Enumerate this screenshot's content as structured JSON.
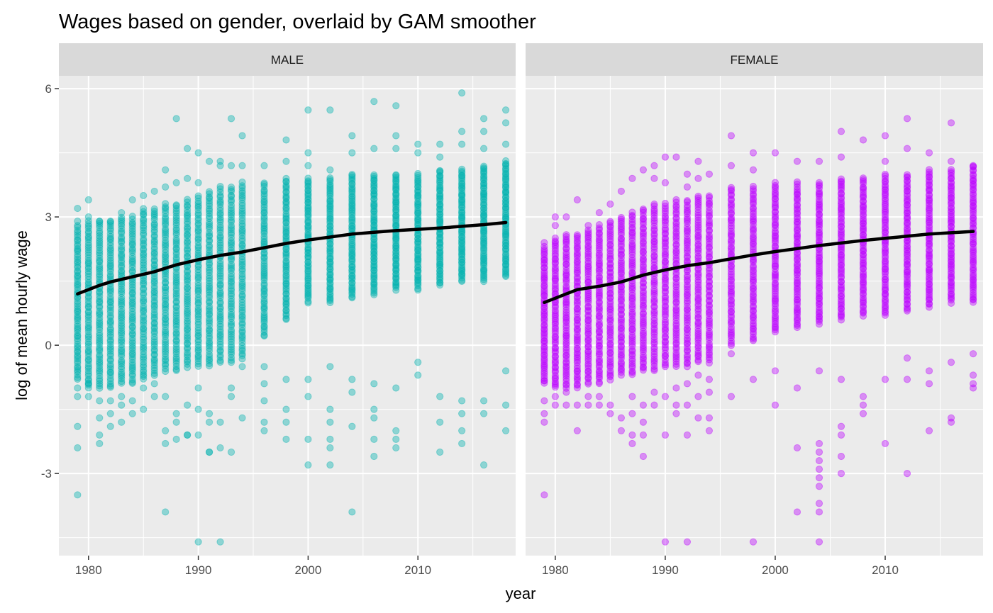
{
  "chart_data": {
    "type": "scatter",
    "title": "Wages based on gender, overlaid by GAM smoother",
    "xlabel": "year",
    "ylabel": "log of mean hourly wage",
    "xlim": [
      1977.3,
      2018.9
    ],
    "ylim": [
      -4.92,
      6.3
    ],
    "x_ticks": [
      1980,
      1990,
      2000,
      2010
    ],
    "x_tick_labels": [
      "1980",
      "1990",
      "2000",
      "2010"
    ],
    "y_ticks": [
      -3,
      0,
      3,
      6
    ],
    "y_tick_labels": [
      "-3",
      "0",
      "3",
      "6"
    ],
    "grid": true,
    "legend": "none",
    "facets": [
      {
        "label": "MALE",
        "color": "#00B2AE",
        "point_opacity": 0.4,
        "years": [
          1979,
          1980,
          1981,
          1982,
          1983,
          1984,
          1985,
          1986,
          1987,
          1988,
          1989,
          1990,
          1991,
          1992,
          1993,
          1994,
          1996,
          1998,
          2000,
          2002,
          2004,
          2006,
          2008,
          2010,
          2012,
          2014,
          2016,
          2018
        ],
        "core_range": [
          [
            -0.8,
            2.8
          ],
          [
            -1.0,
            2.9
          ],
          [
            -1.0,
            2.9
          ],
          [
            -1.0,
            2.9
          ],
          [
            -0.9,
            3.0
          ],
          [
            -0.9,
            3.0
          ],
          [
            -0.8,
            3.2
          ],
          [
            -0.7,
            3.2
          ],
          [
            -0.6,
            3.3
          ],
          [
            -0.6,
            3.3
          ],
          [
            -0.5,
            3.4
          ],
          [
            -0.5,
            3.5
          ],
          [
            -0.5,
            3.6
          ],
          [
            -0.4,
            3.7
          ],
          [
            -0.4,
            3.7
          ],
          [
            -0.3,
            3.8
          ],
          [
            0.2,
            3.8
          ],
          [
            0.6,
            3.9
          ],
          [
            1.0,
            3.9
          ],
          [
            1.0,
            3.9
          ],
          [
            1.1,
            4.0
          ],
          [
            1.2,
            4.0
          ],
          [
            1.3,
            4.0
          ],
          [
            1.3,
            4.0
          ],
          [
            1.4,
            4.1
          ],
          [
            1.5,
            4.1
          ],
          [
            1.5,
            4.2
          ],
          [
            1.6,
            4.3
          ]
        ],
        "outliers": [
          [
            [
              3.2,
              2.9,
              -1.9,
              -2.4,
              -3.5,
              -1.2,
              -1.0
            ]
          ],
          [
            [
              3.4,
              3.0,
              -1.2,
              -0.9
            ]
          ],
          [
            [
              2.9,
              -2.1,
              -2.3,
              -1.7,
              -1.3
            ]
          ],
          [
            [
              2.9,
              -1.6,
              -1.9,
              -1.3
            ]
          ],
          [
            [
              3.1,
              -1.8,
              -1.4,
              -1.2
            ]
          ],
          [
            [
              3.4,
              -1.6,
              -1.3
            ]
          ],
          [
            [
              3.5,
              -1.5,
              -1.0
            ]
          ],
          [
            [
              3.6,
              -1.2,
              -0.9
            ]
          ],
          [
            [
              4.1,
              3.7,
              -1.2,
              -2.0,
              -2.3,
              -3.9
            ]
          ],
          [
            [
              5.3,
              3.8,
              -1.8,
              -2.2,
              -1.6
            ]
          ],
          [
            [
              4.6,
              3.9,
              -2.1,
              -1.4,
              -2.1
            ]
          ],
          [
            [
              4.5,
              3.8,
              -1.0,
              -2.1,
              -4.6,
              -1.5
            ]
          ],
          [
            [
              4.3,
              -1.6,
              -1.8,
              -2.5,
              -2.5
            ]
          ],
          [
            [
              4.3,
              4.2,
              -2.4,
              -1.8,
              -4.6
            ]
          ],
          [
            [
              5.3,
              4.2,
              -1.0,
              -2.5,
              -1.2
            ]
          ],
          [
            [
              4.9,
              4.2,
              -1.7,
              -0.5
            ]
          ],
          [
            [
              4.2,
              -0.5,
              -0.9,
              -1.3,
              -1.8,
              -2.0
            ]
          ],
          [
            [
              4.8,
              4.3,
              -0.8,
              -1.5,
              -1.8,
              -2.2
            ]
          ],
          [
            [
              5.5,
              4.5,
              4.2,
              -0.8,
              -1.2,
              -2.2,
              -2.8
            ]
          ],
          [
            [
              5.5,
              4.1,
              -0.5,
              -1.5,
              -1.8,
              -2.2,
              -2.4,
              -2.8
            ]
          ],
          [
            [
              4.9,
              4.5,
              -1.1,
              -1.9,
              -3.9,
              -0.8
            ]
          ],
          [
            [
              5.7,
              4.6,
              -0.9,
              -1.5,
              -1.7,
              -2.2,
              -2.6
            ]
          ],
          [
            [
              5.6,
              4.9,
              4.6,
              -1.0,
              -2.0,
              -2.2,
              -2.4
            ]
          ],
          [
            [
              4.7,
              4.5,
              -0.7,
              -0.4
            ]
          ],
          [
            [
              4.7,
              4.4,
              -1.2,
              -1.8,
              -2.5
            ]
          ],
          [
            [
              5.9,
              5.0,
              4.7,
              -1.3,
              -1.6,
              -2.0,
              -2.3
            ]
          ],
          [
            [
              5.3,
              5.0,
              4.6,
              -1.3,
              -1.6,
              -2.8
            ]
          ],
          [
            [
              5.5,
              5.2,
              4.7,
              -0.6,
              -1.4,
              -2.0
            ]
          ]
        ],
        "smooth_x": [
          1979,
          1980,
          1981,
          1982,
          1984,
          1986,
          1988,
          1990,
          1992,
          1994,
          1996,
          1998,
          2000,
          2002,
          2004,
          2006,
          2008,
          2010,
          2012,
          2014,
          2016,
          2018
        ],
        "smooth_y": [
          1.2,
          1.3,
          1.4,
          1.48,
          1.6,
          1.72,
          1.88,
          2.0,
          2.1,
          2.18,
          2.28,
          2.38,
          2.46,
          2.53,
          2.6,
          2.64,
          2.68,
          2.71,
          2.74,
          2.78,
          2.82,
          2.87
        ]
      },
      {
        "label": "FEMALE",
        "color": "#BB00FF",
        "point_opacity": 0.4,
        "years": [
          1979,
          1980,
          1981,
          1982,
          1983,
          1984,
          1985,
          1986,
          1987,
          1988,
          1989,
          1990,
          1991,
          1992,
          1993,
          1994,
          1996,
          1998,
          2000,
          2002,
          2004,
          2006,
          2008,
          2010,
          2012,
          2014,
          2016,
          2018
        ],
        "core_range": [
          [
            -0.9,
            2.3
          ],
          [
            -1.0,
            2.5
          ],
          [
            -1.0,
            2.6
          ],
          [
            -1.0,
            2.6
          ],
          [
            -0.9,
            2.7
          ],
          [
            -0.9,
            2.8
          ],
          [
            -0.8,
            2.9
          ],
          [
            -0.7,
            3.0
          ],
          [
            -0.7,
            3.1
          ],
          [
            -0.6,
            3.2
          ],
          [
            -0.6,
            3.3
          ],
          [
            -0.5,
            3.3
          ],
          [
            -0.5,
            3.4
          ],
          [
            -0.5,
            3.4
          ],
          [
            -0.4,
            3.5
          ],
          [
            -0.4,
            3.5
          ],
          [
            0.0,
            3.7
          ],
          [
            0.1,
            3.7
          ],
          [
            0.3,
            3.8
          ],
          [
            0.4,
            3.8
          ],
          [
            0.5,
            3.8
          ],
          [
            0.6,
            3.9
          ],
          [
            0.7,
            3.9
          ],
          [
            0.7,
            4.0
          ],
          [
            0.8,
            4.0
          ],
          [
            0.9,
            4.1
          ],
          [
            1.0,
            4.1
          ],
          [
            1.0,
            4.2
          ]
        ],
        "outliers": [
          [
            [
              2.4,
              -1.3,
              -1.6,
              -1.8,
              -3.5
            ]
          ],
          [
            [
              2.8,
              3.0,
              -1.4,
              -1.2
            ]
          ],
          [
            [
              3.0,
              -1.1,
              -1.4
            ]
          ],
          [
            [
              3.4,
              -2.0,
              -1.4
            ]
          ],
          [
            [
              2.8,
              -1.2,
              -1.4
            ]
          ],
          [
            [
              3.1,
              -1.2,
              -1.4
            ]
          ],
          [
            [
              3.3,
              -1.6,
              -1.4
            ]
          ],
          [
            [
              3.6,
              -1.7,
              -2.0
            ]
          ],
          [
            [
              3.9,
              -1.6,
              -2.1,
              -2.3,
              -1.2
            ]
          ],
          [
            [
              4.1,
              -1.4,
              -1.8,
              -2.1,
              -2.6
            ]
          ],
          [
            [
              4.2,
              3.9,
              -1.1,
              -1.4
            ]
          ],
          [
            [
              4.4,
              3.8,
              -1.2,
              -2.1,
              -4.6
            ]
          ],
          [
            [
              4.4,
              -1.0,
              -1.4,
              -1.6
            ]
          ],
          [
            [
              4.0,
              3.7,
              -0.9,
              -1.4,
              -2.1,
              -4.6
            ]
          ],
          [
            [
              4.3,
              3.9,
              -0.7,
              -1.2,
              -1.7
            ]
          ],
          [
            [
              4.0,
              -0.8,
              -1.1,
              -1.7,
              -2.0
            ]
          ],
          [
            [
              4.9,
              4.2,
              -0.2,
              -1.2
            ]
          ],
          [
            [
              4.5,
              4.1,
              -0.8,
              -4.6
            ]
          ],
          [
            [
              4.5,
              -1.4,
              -0.6
            ]
          ],
          [
            [
              4.3,
              -1.0,
              -2.4,
              -3.9
            ]
          ],
          [
            [
              4.3,
              -0.6,
              -2.3,
              -2.5,
              -2.7,
              -2.9,
              -3.1,
              -3.3,
              -3.7,
              -3.9,
              -4.6
            ]
          ],
          [
            [
              5.0,
              4.4,
              -0.8,
              -1.9,
              -2.1,
              -2.6,
              -3.0
            ]
          ],
          [
            [
              4.8,
              -1.2,
              -1.4,
              -1.6
            ]
          ],
          [
            [
              4.9,
              4.3,
              -0.8,
              -2.3
            ]
          ],
          [
            [
              5.3,
              4.6,
              -0.3,
              -0.8,
              -3.0
            ]
          ],
          [
            [
              4.5,
              -0.6,
              -0.9,
              -2.0
            ]
          ],
          [
            [
              5.2,
              4.3,
              -0.4,
              -1.7,
              -1.8
            ]
          ],
          [
            [
              4.2,
              -0.2,
              -0.7,
              -0.9,
              -1.0
            ]
          ]
        ],
        "smooth_x": [
          1979,
          1980,
          1981,
          1982,
          1984,
          1986,
          1988,
          1990,
          1992,
          1994,
          1996,
          1998,
          2000,
          2002,
          2004,
          2006,
          2008,
          2010,
          2012,
          2014,
          2016,
          2018
        ],
        "smooth_y": [
          1.0,
          1.1,
          1.2,
          1.3,
          1.38,
          1.48,
          1.64,
          1.76,
          1.86,
          1.93,
          2.02,
          2.11,
          2.19,
          2.26,
          2.33,
          2.39,
          2.45,
          2.5,
          2.55,
          2.6,
          2.63,
          2.66
        ]
      }
    ]
  }
}
